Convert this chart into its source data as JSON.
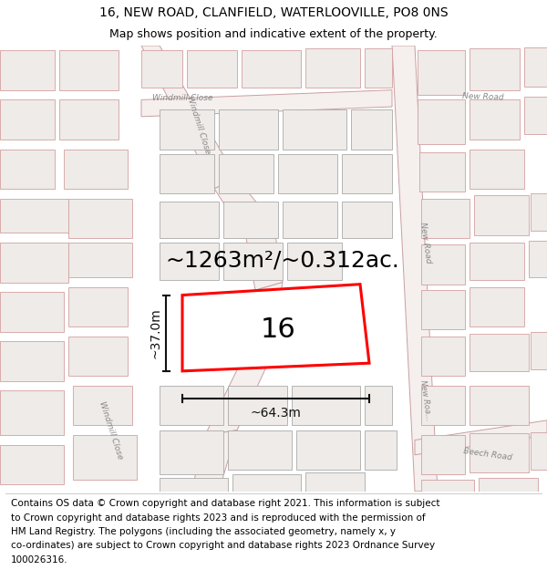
{
  "title_line1": "16, NEW ROAD, CLANFIELD, WATERLOOVILLE, PO8 0NS",
  "title_line2": "Map shows position and indicative extent of the property.",
  "area_text": "~1263m²/~0.312ac.",
  "property_number": "16",
  "dim_width": "~64.3m",
  "dim_height": "~37.0m",
  "footer_lines": [
    "Contains OS data © Crown copyright and database right 2021. This information is subject",
    "to Crown copyright and database rights 2023 and is reproduced with the permission of",
    "HM Land Registry. The polygons (including the associated geometry, namely x, y",
    "co-ordinates) are subject to Crown copyright and database rights 2023 Ordnance Survey",
    "100026316."
  ],
  "bg_color": "#ffffff",
  "map_bg": "#f8f8f6",
  "road_fill": "#f0e8e6",
  "road_edge": "#d4a0a0",
  "bld_fill": "#eeebe8",
  "bld_edge": "#aaaaaa",
  "bld_pink_edge": "#d4a0a0",
  "plot_color": "#ff0000",
  "dim_color": "#111111",
  "road_label_color": "#888888",
  "title_fs": 10,
  "sub_fs": 9,
  "area_fs": 18,
  "num_fs": 22,
  "dim_fs": 10,
  "footer_fs": 7.5,
  "road_label_fs": 6.5
}
